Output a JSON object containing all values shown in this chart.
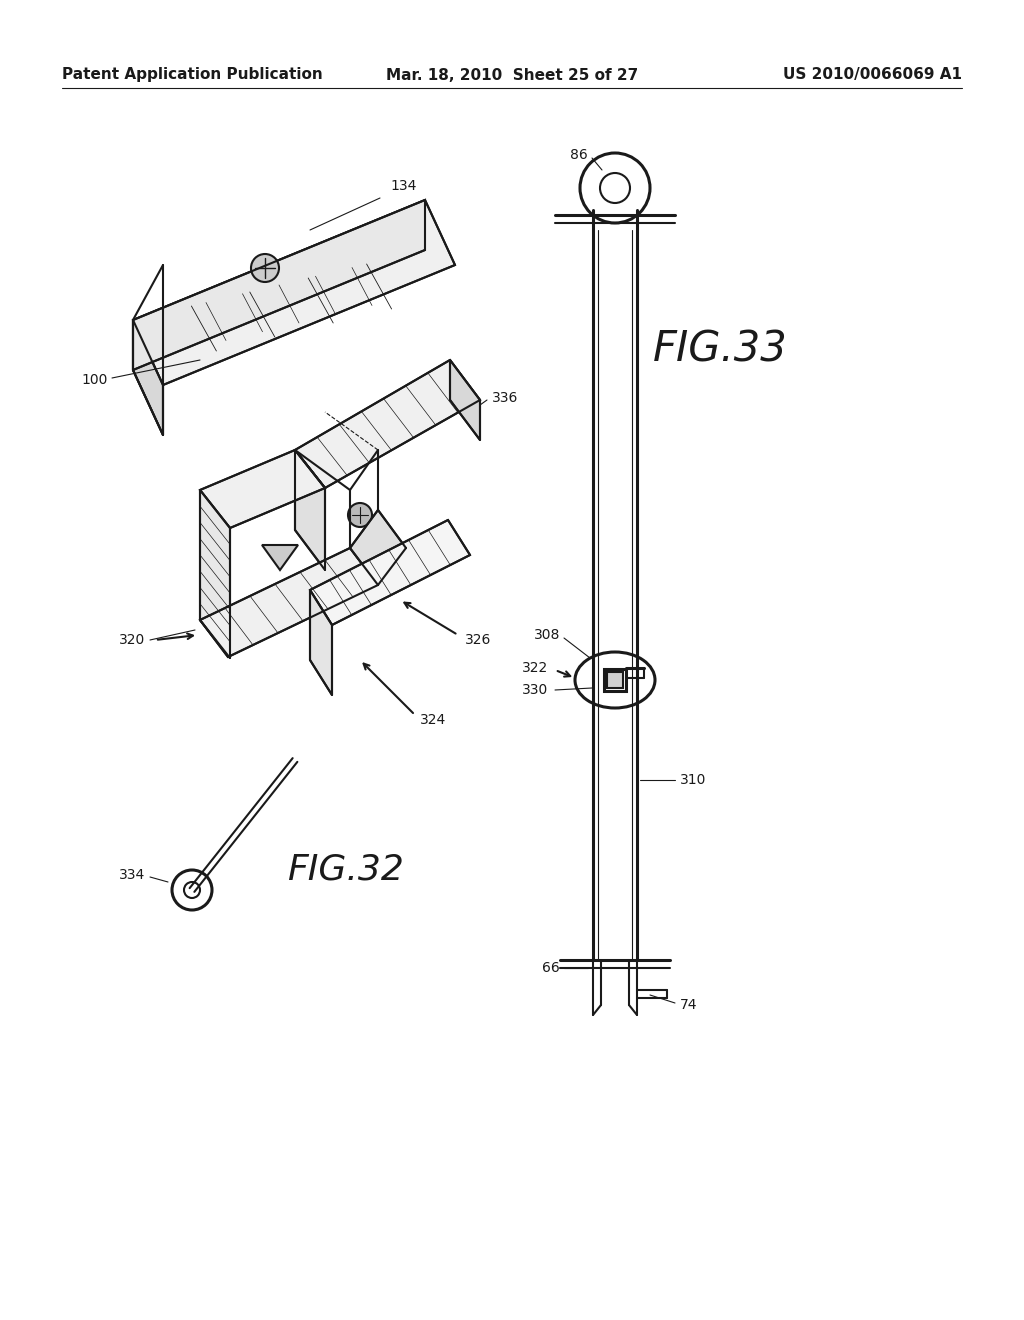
{
  "background_color": "#ffffff",
  "line_color": "#1a1a1a",
  "header_left": "Patent Application Publication",
  "header_mid": "Mar. 18, 2010  Sheet 25 of 27",
  "header_right": "US 2010/0066069 A1",
  "fig32_label": "FIG.32",
  "fig33_label": "FIG.33"
}
